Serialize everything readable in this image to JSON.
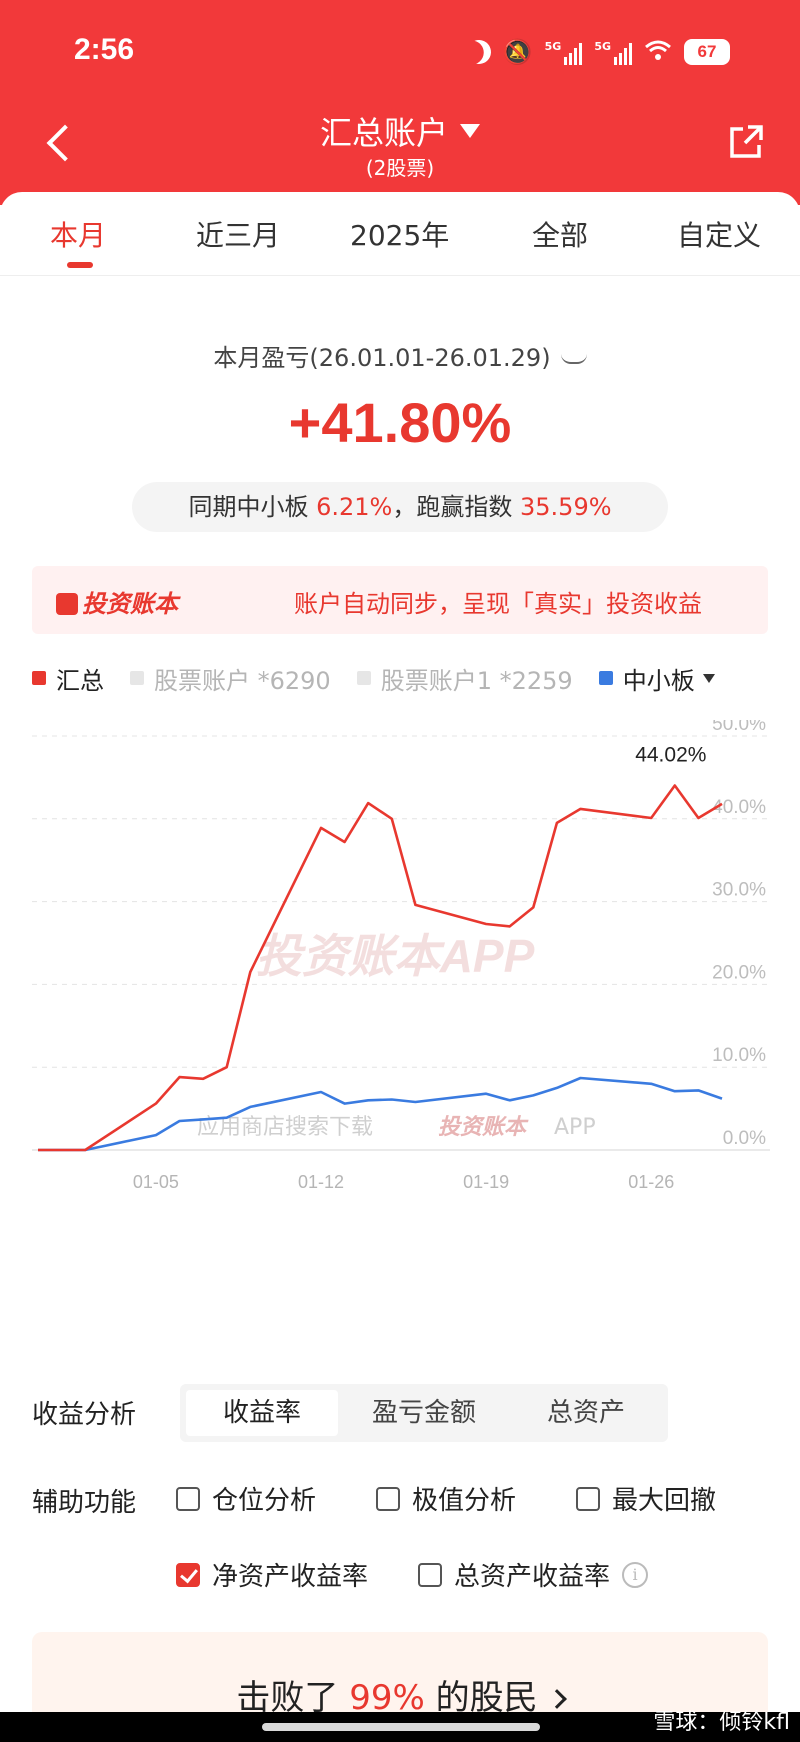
{
  "status_bar": {
    "time": "2:56",
    "net1": "5G",
    "net2": "5G",
    "battery": "67"
  },
  "header": {
    "title": "汇总账户",
    "subtitle": "(2股票)"
  },
  "tabs": [
    {
      "label": "本月",
      "active": true
    },
    {
      "label": "近三月",
      "active": false
    },
    {
      "label": "2025年",
      "active": false
    },
    {
      "label": "全部",
      "active": false
    },
    {
      "label": "自定义",
      "active": false
    }
  ],
  "summary": {
    "period_label": "本月盈亏(26.01.01-26.01.29)",
    "return_value": "+41.80%",
    "compare_prefix": "同期中小板",
    "compare_index_value": "6.21%",
    "compare_mid": "，跑赢指数",
    "compare_beat_value": "35.59%"
  },
  "banner": {
    "logo": "投资账本",
    "text": "账户自动同步，呈现「真实」投资收益"
  },
  "legend": [
    {
      "label": "汇总",
      "color": "#e8382f",
      "active": true
    },
    {
      "label": "股票账户 *6290",
      "color": "#e6e6e6",
      "active": false
    },
    {
      "label": "股票账户1 *2259",
      "color": "#e6e6e6",
      "active": false
    },
    {
      "label": "中小板",
      "color": "#3a7be0",
      "active": true
    }
  ],
  "chart_data": {
    "type": "line",
    "y_ticks": [
      "50.0%",
      "40.0%",
      "30.0%",
      "20.0%",
      "10.0%",
      "0.0%"
    ],
    "x_ticks": [
      "01-05",
      "01-12",
      "01-19",
      "01-26"
    ],
    "ylim": [
      0,
      50
    ],
    "grid": true,
    "peak_label": "44.02%",
    "watermark_center": "投资账本APP",
    "watermark_bottom": "应用商店搜索下载",
    "watermark_bottom_logo": "投资账本",
    "watermark_bottom_suffix": "APP",
    "series": [
      {
        "name": "汇总",
        "color": "#e8382f",
        "x": [
          "2025-12-31",
          "2026-01-01",
          "2026-01-02",
          "2026-01-05",
          "2026-01-06",
          "2026-01-07",
          "2026-01-08",
          "2026-01-09",
          "2026-01-12",
          "2026-01-13",
          "2026-01-14",
          "2026-01-15",
          "2026-01-16",
          "2026-01-19",
          "2026-01-20",
          "2026-01-21",
          "2026-01-22",
          "2026-01-23",
          "2026-01-26",
          "2026-01-27",
          "2026-01-28",
          "2026-01-29"
        ],
        "values": [
          0.0,
          0.0,
          0.0,
          5.6,
          8.8,
          8.6,
          10.0,
          21.5,
          38.9,
          37.2,
          41.9,
          40.0,
          29.6,
          27.3,
          27.0,
          29.3,
          39.5,
          41.2,
          40.1,
          44.02,
          40.1,
          41.8
        ]
      },
      {
        "name": "中小板",
        "color": "#3a7be0",
        "x": [
          "2025-12-31",
          "2026-01-01",
          "2026-01-02",
          "2026-01-05",
          "2026-01-06",
          "2026-01-07",
          "2026-01-08",
          "2026-01-09",
          "2026-01-12",
          "2026-01-13",
          "2026-01-14",
          "2026-01-15",
          "2026-01-16",
          "2026-01-19",
          "2026-01-20",
          "2026-01-21",
          "2026-01-22",
          "2026-01-23",
          "2026-01-26",
          "2026-01-27",
          "2026-01-28",
          "2026-01-29"
        ],
        "values": [
          0.0,
          0.0,
          0.0,
          1.8,
          3.5,
          3.7,
          3.9,
          5.2,
          7.0,
          5.6,
          6.0,
          6.1,
          5.8,
          6.8,
          6.0,
          6.6,
          7.5,
          8.7,
          8.0,
          7.1,
          7.2,
          6.21
        ]
      }
    ]
  },
  "analysis": {
    "label": "收益分析",
    "options": [
      {
        "label": "收益率",
        "active": true
      },
      {
        "label": "盈亏金额",
        "active": false
      },
      {
        "label": "总资产",
        "active": false
      }
    ]
  },
  "aux": {
    "label": "辅助功能",
    "checks": [
      {
        "label": "仓位分析",
        "checked": false
      },
      {
        "label": "极值分析",
        "checked": false
      },
      {
        "label": "最大回撤",
        "checked": false
      },
      {
        "label": "净资产收益率",
        "checked": true
      },
      {
        "label": "总资产收益率",
        "checked": false
      }
    ]
  },
  "beat": {
    "prefix": "击败了 ",
    "value": "99%",
    "suffix": " 的股民"
  },
  "watermark_corner": "雪球：倾铃kfl"
}
